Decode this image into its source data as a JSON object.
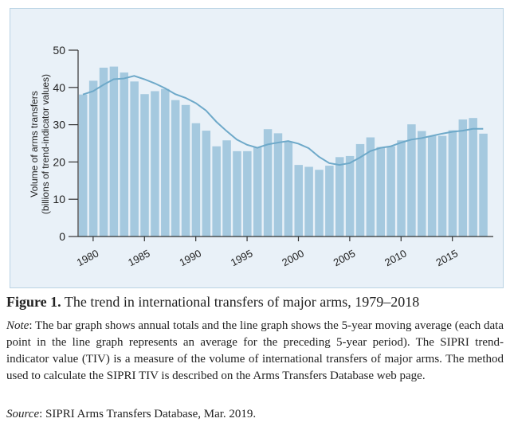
{
  "figure": {
    "label": "Figure 1.",
    "title": "The trend in international transfers of major arms, 1979–2018",
    "note_label": "Note",
    "note_text": ": The bar graph shows annual totals and the line graph shows the 5-year moving average (each data point in the line graph represents an average for the preceding 5-year period). The SIPRI trend-indicator value (TIV) is a measure of the volume of international transfers of major arms. The method used to calculate the SIPRI TIV is described on the Arms Transfers Database web page.",
    "source_label": "Source",
    "source_text": ": SIPRI Arms Transfers Database, Mar. 2019."
  },
  "chart_data": {
    "type": "bar",
    "title": "",
    "ylabel": "Volume of arms transfers",
    "ylabel_sub": "(billions of trend-indicator values)",
    "xlabel": "",
    "ylim": [
      0,
      50
    ],
    "yticks": [
      0,
      10,
      20,
      30,
      40,
      50
    ],
    "xticks": [
      1980,
      1985,
      1990,
      1995,
      2000,
      2005,
      2010,
      2015
    ],
    "grid": false,
    "x": [
      1979,
      1980,
      1981,
      1982,
      1983,
      1984,
      1985,
      1986,
      1987,
      1988,
      1989,
      1990,
      1991,
      1992,
      1993,
      1994,
      1995,
      1996,
      1997,
      1998,
      1999,
      2000,
      2001,
      2002,
      2003,
      2004,
      2005,
      2006,
      2007,
      2008,
      2009,
      2010,
      2011,
      2012,
      2013,
      2014,
      2015,
      2016,
      2017,
      2018
    ],
    "series": [
      {
        "type": "bar",
        "color": "#a5c9df",
        "values": [
          38.1,
          41.8,
          45.3,
          45.6,
          44.0,
          41.6,
          38.2,
          39.0,
          39.6,
          36.6,
          35.3,
          30.4,
          28.4,
          24.2,
          25.8,
          22.9,
          22.9,
          23.9,
          28.8,
          27.7,
          25.4,
          19.2,
          18.7,
          17.9,
          19.0,
          21.3,
          21.6,
          24.8,
          26.6,
          24.0,
          24.2,
          25.8,
          30.1,
          28.3,
          27.0,
          27.0,
          28.5,
          31.4,
          31.8,
          27.6
        ]
      },
      {
        "type": "line",
        "color": "#6ea9c9",
        "values": [
          38.1,
          39.0,
          40.7,
          42.2,
          42.4,
          43.1,
          42.2,
          41.1,
          39.8,
          38.2,
          37.2,
          35.8,
          33.8,
          30.8,
          28.3,
          26.0,
          24.6,
          23.8,
          24.7,
          25.2,
          25.6,
          24.9,
          23.7,
          21.4,
          19.7,
          19.2,
          19.7,
          21.2,
          22.9,
          23.8,
          24.2,
          25.2,
          26.0,
          26.4,
          27.0,
          27.6,
          28.1,
          28.4,
          28.9,
          28.9
        ]
      }
    ]
  }
}
